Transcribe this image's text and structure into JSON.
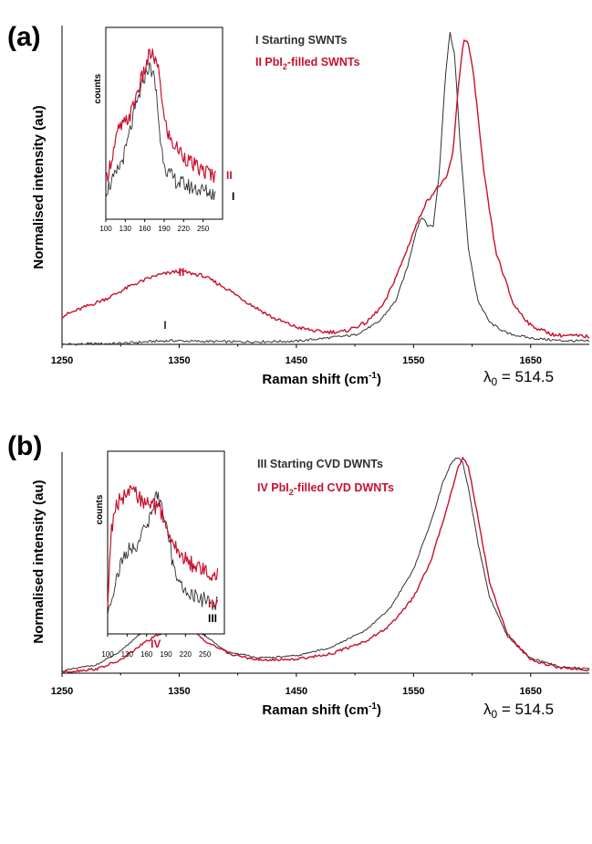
{
  "colors": {
    "black_series": "#303030",
    "red_series": "#c8102e",
    "axis": "#000000"
  },
  "chart_data": [
    {
      "type": "line",
      "panel_label": "(a)",
      "xlabel": "Raman shift (cm",
      "xlabel_sup": "-1",
      "xlabel_close": ")",
      "ylabel": "Normalised intensity (au)",
      "xlim": [
        1250,
        1700
      ],
      "ylim": [
        0,
        1
      ],
      "xticks": [
        "1250",
        "1350",
        "1450",
        "1550",
        "1650"
      ],
      "xtick_values": [
        1250,
        1350,
        1450,
        1550,
        1650
      ],
      "lambda_prefix": "λ",
      "lambda_sub": "0",
      "lambda_value": " = 514.5",
      "legend": [
        {
          "roman": "I",
          "text": "Starting SWNTs",
          "color": "black"
        },
        {
          "roman": "II",
          "text_pre": "PbI",
          "text_sub": "2",
          "text_post": "-filled SWNTs",
          "color": "red"
        }
      ],
      "curve_labels": {
        "black": "I",
        "red": "II"
      },
      "series": [
        {
          "name": "I Starting SWNTs",
          "color": "black",
          "x": [
            1250,
            1300,
            1330,
            1345,
            1360,
            1400,
            1450,
            1500,
            1520,
            1535,
            1545,
            1552,
            1557,
            1562,
            1567,
            1572,
            1577,
            1581,
            1585,
            1590,
            1597,
            1605,
            1615,
            1630,
            1650,
            1675,
            1700
          ],
          "y": [
            0.0,
            0.003,
            0.01,
            0.012,
            0.01,
            0.008,
            0.01,
            0.03,
            0.07,
            0.14,
            0.25,
            0.36,
            0.41,
            0.38,
            0.38,
            0.55,
            0.85,
            1.0,
            0.93,
            0.63,
            0.3,
            0.14,
            0.07,
            0.035,
            0.02,
            0.012,
            0.01
          ]
        },
        {
          "name": "II PbI2-filled SWNTs",
          "color": "red",
          "x": [
            1250,
            1270,
            1290,
            1310,
            1330,
            1350,
            1370,
            1390,
            1410,
            1430,
            1450,
            1470,
            1490,
            1510,
            1525,
            1540,
            1550,
            1560,
            1570,
            1578,
            1584,
            1588,
            1593,
            1597,
            1602,
            1610,
            1620,
            1635,
            1650,
            1670,
            1700
          ],
          "y": [
            0.09,
            0.12,
            0.15,
            0.19,
            0.22,
            0.235,
            0.22,
            0.18,
            0.13,
            0.085,
            0.055,
            0.04,
            0.04,
            0.07,
            0.13,
            0.26,
            0.36,
            0.45,
            0.5,
            0.53,
            0.62,
            0.82,
            0.98,
            0.96,
            0.84,
            0.55,
            0.3,
            0.13,
            0.06,
            0.03,
            0.025
          ]
        }
      ],
      "inset": {
        "ylabel": "counts",
        "xlim": [
          100,
          280
        ],
        "xticks": [
          "100",
          "130",
          "160",
          "190",
          "220",
          "250"
        ],
        "xtick_values": [
          100,
          130,
          160,
          190,
          220,
          250
        ],
        "labels": {
          "red": "II",
          "black": "I"
        },
        "series": [
          {
            "color": "black",
            "x": [
              100,
              115,
              130,
              140,
              150,
              160,
              165,
              172,
              178,
              185,
              195,
              210,
              230,
              250,
              260,
              270
            ],
            "y": [
              0.1,
              0.18,
              0.32,
              0.48,
              0.62,
              0.75,
              0.8,
              0.78,
              0.65,
              0.35,
              0.2,
              0.15,
              0.12,
              0.1,
              0.09,
              0.08
            ]
          },
          {
            "color": "red",
            "x": [
              100,
              110,
              120,
              130,
              140,
              150,
              160,
              168,
              175,
              183,
              190,
              200,
              215,
              230,
              245,
              260,
              270
            ],
            "y": [
              0.15,
              0.3,
              0.45,
              0.48,
              0.55,
              0.68,
              0.78,
              0.88,
              0.85,
              0.75,
              0.5,
              0.38,
              0.32,
              0.26,
              0.22,
              0.2,
              0.18
            ]
          }
        ]
      }
    },
    {
      "type": "line",
      "panel_label": "(b)",
      "xlabel": "Raman shift (cm",
      "xlabel_sup": "-1",
      "xlabel_close": ")",
      "ylabel": "Normalised intensity (au)",
      "xlim": [
        1250,
        1700
      ],
      "ylim": [
        0,
        1
      ],
      "xticks": [
        "1250",
        "1350",
        "1450",
        "1550",
        "1650"
      ],
      "xtick_values": [
        1250,
        1350,
        1450,
        1550,
        1650
      ],
      "lambda_prefix": "λ",
      "lambda_sub": "0",
      "lambda_value": " = 514.5",
      "legend": [
        {
          "roman": "III",
          "text": "Starting CVD DWNTs",
          "color": "black"
        },
        {
          "roman": "IV",
          "text_pre": "PbI",
          "text_sub": "2",
          "text_post": "-filled CVD DWNTs",
          "color": "red"
        }
      ],
      "curve_labels": {
        "black": "III",
        "red": "IV"
      },
      "series": [
        {
          "name": "III Starting CVD DWNTs",
          "color": "black",
          "x": [
            1250,
            1280,
            1300,
            1320,
            1335,
            1345,
            1355,
            1370,
            1390,
            1420,
            1450,
            1480,
            1510,
            1530,
            1550,
            1565,
            1575,
            1582,
            1588,
            1592,
            1597,
            1605,
            1615,
            1630,
            1650,
            1675,
            1700
          ],
          "y": [
            0.01,
            0.04,
            0.1,
            0.2,
            0.27,
            0.285,
            0.26,
            0.18,
            0.1,
            0.07,
            0.08,
            0.12,
            0.2,
            0.3,
            0.48,
            0.7,
            0.88,
            0.97,
            1.0,
            0.97,
            0.85,
            0.6,
            0.35,
            0.17,
            0.07,
            0.03,
            0.02
          ]
        },
        {
          "name": "IV PbI2-filled CVD DWNTs",
          "color": "red",
          "x": [
            1250,
            1280,
            1300,
            1320,
            1340,
            1350,
            1360,
            1375,
            1395,
            1420,
            1450,
            1480,
            1510,
            1530,
            1550,
            1565,
            1575,
            1583,
            1588,
            1592,
            1597,
            1605,
            1615,
            1630,
            1650,
            1675,
            1700
          ],
          "y": [
            0.005,
            0.02,
            0.06,
            0.14,
            0.2,
            0.215,
            0.2,
            0.14,
            0.085,
            0.06,
            0.065,
            0.09,
            0.15,
            0.22,
            0.35,
            0.52,
            0.7,
            0.85,
            0.95,
            1.0,
            0.95,
            0.72,
            0.42,
            0.18,
            0.06,
            0.025,
            0.015
          ]
        }
      ],
      "inset": {
        "ylabel": "counts",
        "xlim": [
          100,
          280
        ],
        "xticks": [
          "100",
          "130",
          "160",
          "190",
          "220",
          "250"
        ],
        "xtick_values": [
          100,
          130,
          160,
          190,
          220,
          250
        ],
        "labels": {
          "red": "IV",
          "black": "III"
        },
        "series": [
          {
            "color": "black",
            "x": [
              100,
              110,
              120,
              130,
              140,
              150,
              160,
              170,
              178,
              185,
              192,
              200,
              210,
              220,
              230,
              245,
              260,
              270
            ],
            "y": [
              0.1,
              0.25,
              0.38,
              0.45,
              0.48,
              0.52,
              0.6,
              0.72,
              0.78,
              0.7,
              0.55,
              0.4,
              0.28,
              0.22,
              0.2,
              0.18,
              0.16,
              0.15
            ]
          },
          {
            "color": "red",
            "x": [
              100,
              105,
              112,
              120,
              130,
              140,
              150,
              160,
              170,
              180,
              190,
              200,
              215,
              230,
              245,
              260,
              270
            ],
            "y": [
              0.15,
              0.55,
              0.72,
              0.75,
              0.78,
              0.8,
              0.76,
              0.72,
              0.72,
              0.7,
              0.6,
              0.5,
              0.42,
              0.38,
              0.35,
              0.33,
              0.32
            ]
          }
        ]
      }
    }
  ]
}
